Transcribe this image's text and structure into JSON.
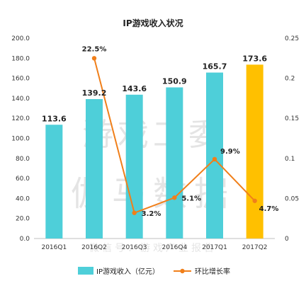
{
  "chart_data": {
    "type": "bar+line",
    "title": "IP游戏收入状况",
    "categories": [
      "2016Q1",
      "2016Q2",
      "2016Q3",
      "2016Q4",
      "2017Q1",
      "2017Q2"
    ],
    "series": [
      {
        "name": "IP游戏收入（亿元）",
        "type": "bar",
        "axis": "left",
        "values": [
          113.6,
          139.2,
          143.6,
          150.9,
          165.7,
          173.6
        ],
        "labels": [
          "113.6",
          "139.2",
          "143.6",
          "150.9",
          "165.7",
          "173.6"
        ],
        "color": "#4ecfd9",
        "highlight_color": "#ffc000",
        "highlight_index": 5
      },
      {
        "name": "环比增长率",
        "type": "line",
        "axis": "right",
        "values": [
          null,
          0.225,
          0.032,
          0.051,
          0.099,
          0.047
        ],
        "labels": [
          "",
          "22.5%",
          "3.2%",
          "5.1%",
          "9.9%",
          "4.7%"
        ],
        "color": "#f07f1a"
      }
    ],
    "y_left": {
      "min": 0,
      "max": 200,
      "ticks": [
        "0.0",
        "20.0",
        "40.0",
        "60.0",
        "80.0",
        "100.0",
        "120.0",
        "140.0",
        "160.0",
        "180.0",
        "200.0"
      ]
    },
    "y_right": {
      "min": 0,
      "max": 0.25,
      "ticks": [
        "0",
        "0.05",
        "0.1",
        "0.15",
        "0.2",
        "0.25"
      ]
    },
    "grid": false,
    "legend_position": "bottom"
  },
  "watermark": {
    "line1": "游戏工委",
    "line2": "伽马数据",
    "line3": "微信号：游戏产业报告"
  }
}
